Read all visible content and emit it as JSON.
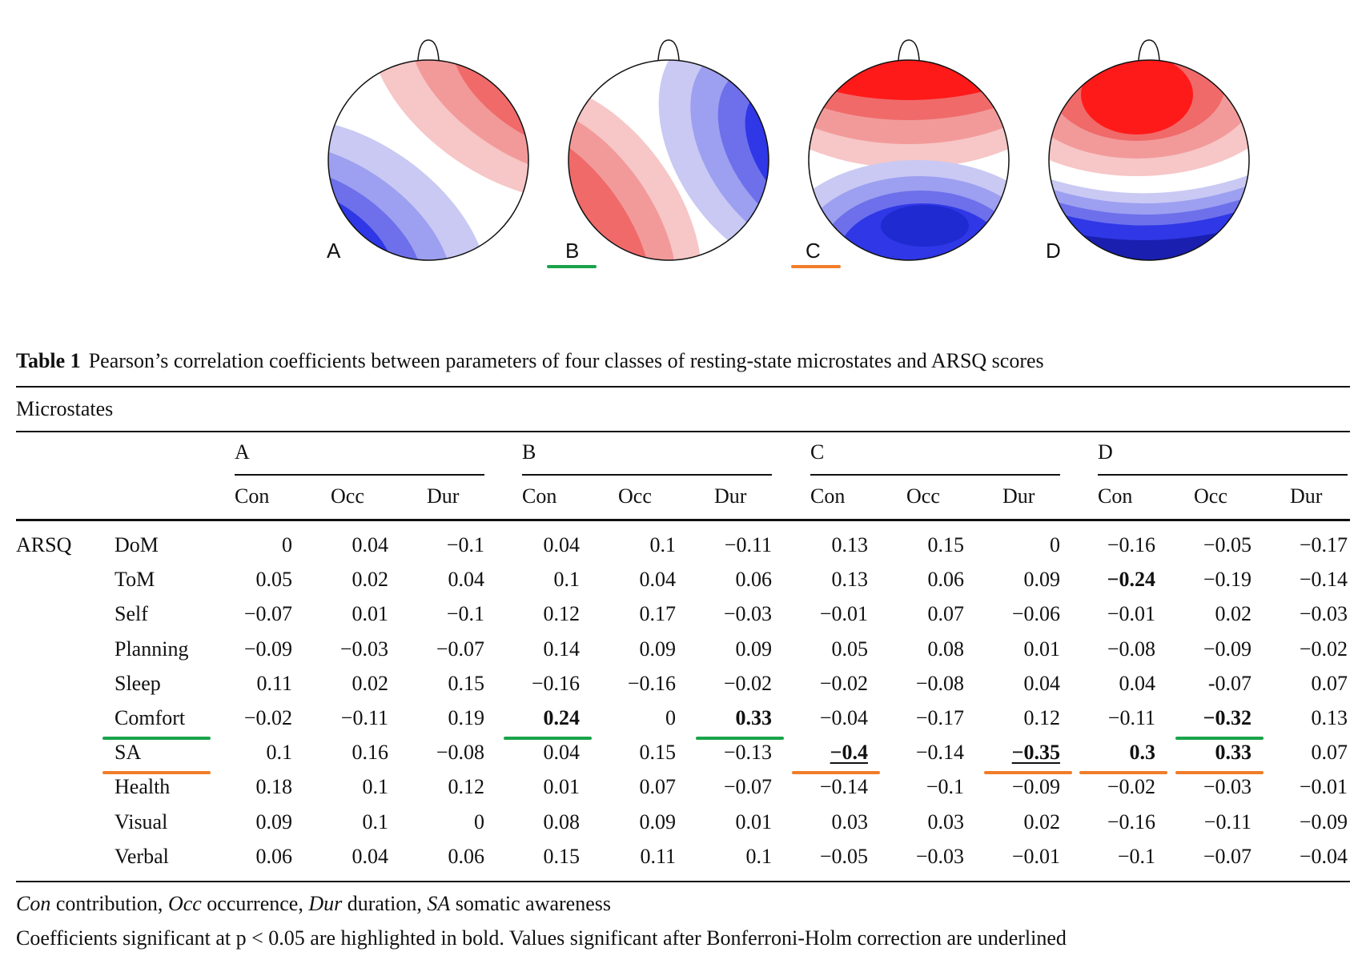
{
  "maps": [
    {
      "label": "A"
    },
    {
      "label": "B"
    },
    {
      "label": "C"
    },
    {
      "label": "D"
    }
  ],
  "colors": {
    "green": "#1aa34a",
    "orange": "#f07d2a",
    "red": "#ff1a1a",
    "blue": "#1f2fe0",
    "darkblue": "#0a0a4a"
  },
  "table": {
    "number": "Table 1",
    "caption": "Pearson’s correlation coefficients between parameters of four classes of resting-state microstates and ARSQ scores",
    "group_header": "Microstates",
    "row_group": "ARSQ",
    "classes": [
      "A",
      "B",
      "C",
      "D"
    ],
    "params": [
      "Con",
      "Occ",
      "Dur"
    ],
    "rows": [
      {
        "name": "DoM",
        "values": [
          "0",
          "0.04",
          "−0.1",
          "0.04",
          "0.1",
          "−0.11",
          "0.13",
          "0.15",
          "0",
          "−0.16",
          "−0.05",
          "−0.17"
        ],
        "bold": [],
        "underline": []
      },
      {
        "name": "ToM",
        "values": [
          "0.05",
          "0.02",
          "0.04",
          "0.1",
          "0.04",
          "0.06",
          "0.13",
          "0.06",
          "0.09",
          "−0.24",
          "−0.19",
          "−0.14"
        ],
        "bold": [
          9
        ],
        "underline": []
      },
      {
        "name": "Self",
        "values": [
          "−0.07",
          "0.01",
          "−0.1",
          "0.12",
          "0.17",
          "−0.03",
          "−0.01",
          "0.07",
          "−0.06",
          "−0.01",
          "0.02",
          "−0.03"
        ],
        "bold": [],
        "underline": []
      },
      {
        "name": "Planning",
        "values": [
          "−0.09",
          "−0.03",
          "−0.07",
          "0.14",
          "0.09",
          "0.09",
          "0.05",
          "0.08",
          "0.01",
          "−0.08",
          "−0.09",
          "−0.02"
        ],
        "bold": [],
        "underline": []
      },
      {
        "name": "Sleep",
        "values": [
          "0.11",
          "0.02",
          "0.15",
          "−0.16",
          "−0.16",
          "−0.02",
          "−0.02",
          "−0.08",
          "0.04",
          "0.04",
          "-0.07",
          "0.07"
        ],
        "bold": [],
        "underline": []
      },
      {
        "name": "Comfort",
        "values": [
          "−0.02",
          "−0.11",
          "0.19",
          "0.24",
          "0",
          "0.33",
          "−0.04",
          "−0.17",
          "0.12",
          "−0.11",
          "−0.32",
          "0.13"
        ],
        "bold": [
          3,
          5,
          10
        ],
        "underline": [],
        "mark": "green"
      },
      {
        "name": "SA",
        "values": [
          "0.1",
          "0.16",
          "−0.08",
          "0.04",
          "0.15",
          "−0.13",
          "−0.4",
          "−0.14",
          "−0.35",
          "0.3",
          "0.33",
          "0.07"
        ],
        "bold": [
          6,
          8,
          9,
          10
        ],
        "underline": [
          6,
          8
        ],
        "mark": "orange"
      },
      {
        "name": "Health",
        "values": [
          "0.18",
          "0.1",
          "0.12",
          "0.01",
          "0.07",
          "−0.07",
          "−0.14",
          "−0.1",
          "−0.09",
          "−0.02",
          "−0.03",
          "−0.01"
        ],
        "bold": [],
        "underline": []
      },
      {
        "name": "Visual",
        "values": [
          "0.09",
          "0.1",
          "0",
          "0.08",
          "0.09",
          "0.01",
          "0.03",
          "0.03",
          "0.02",
          "−0.16",
          "−0.11",
          "−0.09"
        ],
        "bold": [],
        "underline": []
      },
      {
        "name": "Verbal",
        "values": [
          "0.06",
          "0.04",
          "0.06",
          "0.15",
          "0.11",
          "0.1",
          "−0.05",
          "−0.03",
          "−0.01",
          "−0.1",
          "−0.07",
          "−0.04"
        ],
        "bold": [],
        "underline": []
      }
    ],
    "footnote1": {
      "t1": "Con",
      "d1": " contribution, ",
      "t2": "Occ",
      "d2": " occurrence, ",
      "t3": "Dur",
      "d3": " duration, ",
      "t4": "SA",
      "d4": " somatic awareness"
    },
    "footnote2": "Coefficients significant at p < 0.05 are highlighted in bold. Values significant after Bonferroni-Holm correction are underlined"
  }
}
